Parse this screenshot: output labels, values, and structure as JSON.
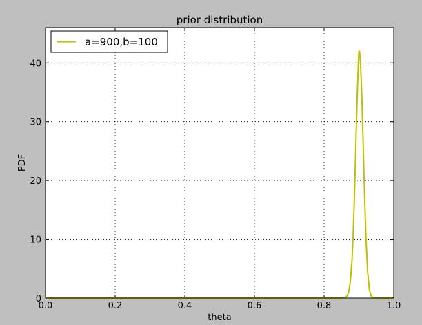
{
  "chart_data": {
    "type": "line",
    "title": "prior distribution",
    "xlabel": "theta",
    "ylabel": "PDF",
    "xlim": [
      0.0,
      1.0
    ],
    "ylim": [
      0,
      46
    ],
    "xticks": [
      "0.0",
      "0.2",
      "0.4",
      "0.6",
      "0.8",
      "1.0"
    ],
    "xtick_values": [
      0.0,
      0.2,
      0.4,
      0.6,
      0.8,
      1.0
    ],
    "yticks": [
      "0",
      "10",
      "20",
      "30",
      "40"
    ],
    "ytick_values": [
      0,
      10,
      20,
      30,
      40
    ],
    "grid": true,
    "legend_position": "top-left",
    "series": [
      {
        "name": "a=900,b=100",
        "color": "#bfbf00",
        "x": [
          0.0,
          0.1,
          0.2,
          0.3,
          0.4,
          0.5,
          0.6,
          0.7,
          0.8,
          0.85,
          0.86,
          0.865,
          0.87,
          0.875,
          0.88,
          0.883,
          0.886,
          0.889,
          0.892,
          0.895,
          0.898,
          0.9,
          0.902,
          0.905,
          0.908,
          0.911,
          0.914,
          0.917,
          0.92,
          0.925,
          0.93,
          0.935,
          0.94,
          0.95,
          0.97,
          1.0
        ],
        "y": [
          0,
          0,
          0,
          0,
          0,
          0,
          0,
          0,
          0,
          0.0,
          0.1,
          0.3,
          0.9,
          2.6,
          6.3,
          10.0,
          15.1,
          21.2,
          27.9,
          34.2,
          39.3,
          42.0,
          41.9,
          39.5,
          35.0,
          29.0,
          22.3,
          16.0,
          10.6,
          4.5,
          1.5,
          0.4,
          0.1,
          0.0,
          0,
          0
        ]
      }
    ]
  }
}
